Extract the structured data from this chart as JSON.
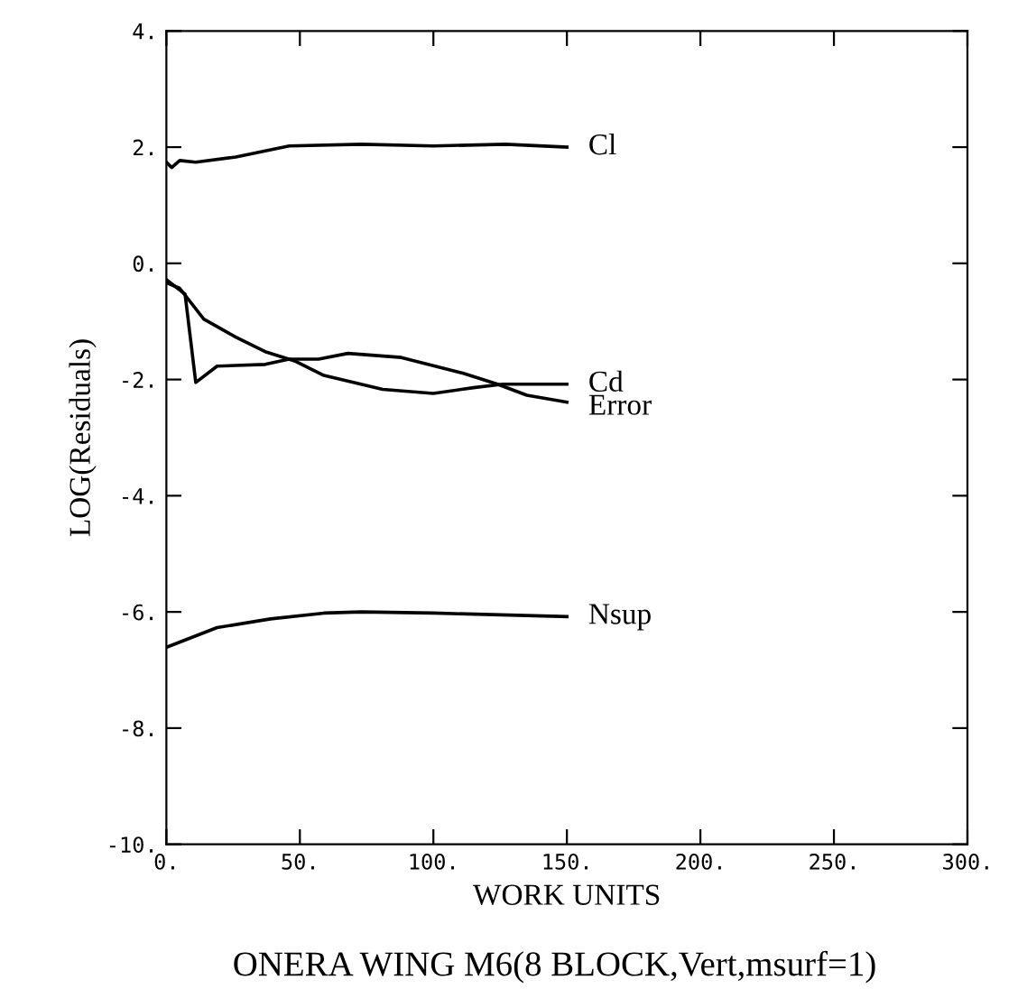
{
  "chart_data": {
    "type": "line",
    "title": "ONERA WING M6(8 BLOCK,Vert,msurf=1)",
    "xlabel": "WORK UNITS",
    "ylabel": "LOG(Residuals)",
    "xlim": [
      0,
      300
    ],
    "ylim": [
      -10,
      4
    ],
    "xticks": [
      {
        "value": 0,
        "label": "0."
      },
      {
        "value": 50,
        "label": "50."
      },
      {
        "value": 100,
        "label": "100."
      },
      {
        "value": 150,
        "label": "150."
      },
      {
        "value": 200,
        "label": "200."
      },
      {
        "value": 250,
        "label": "250."
      },
      {
        "value": 300,
        "label": "300."
      }
    ],
    "yticks": [
      {
        "value": -10,
        "label": "-10."
      },
      {
        "value": -8,
        "label": "-8."
      },
      {
        "value": -6,
        "label": "-6."
      },
      {
        "value": -4,
        "label": "-4."
      },
      {
        "value": -2,
        "label": "-2."
      },
      {
        "value": 0,
        "label": "0."
      },
      {
        "value": 2,
        "label": "2."
      },
      {
        "value": 4,
        "label": "4."
      }
    ],
    "grid": false,
    "legend": false,
    "marker": "none",
    "line_style": "solid",
    "series": [
      {
        "name": "Cl",
        "color": "#000000",
        "x": [
          0,
          2,
          5,
          11,
          26,
          46,
          73,
          100,
          127,
          150
        ],
        "values": [
          1.74,
          1.65,
          1.77,
          1.74,
          1.83,
          2.02,
          2.05,
          2.02,
          2.05,
          2.0
        ]
      },
      {
        "name": "Cd",
        "color": "#000000",
        "x": [
          0,
          5,
          14,
          26,
          37,
          48,
          59,
          81,
          100,
          115,
          126,
          150
        ],
        "values": [
          -0.33,
          -0.43,
          -0.96,
          -1.27,
          -1.52,
          -1.68,
          -1.93,
          -2.17,
          -2.24,
          -2.14,
          -2.08,
          -2.08
        ]
      },
      {
        "name": "Error",
        "color": "#000000",
        "x": [
          0,
          7,
          11,
          19,
          37,
          46,
          57,
          68,
          88,
          111,
          124,
          135,
          150
        ],
        "values": [
          -0.28,
          -0.53,
          -2.05,
          -1.77,
          -1.74,
          -1.65,
          -1.65,
          -1.55,
          -1.62,
          -1.89,
          -2.08,
          -2.27,
          -2.39
        ]
      },
      {
        "name": "Nsup",
        "color": "#000000",
        "x": [
          0,
          19,
          39,
          59,
          73,
          100,
          150
        ],
        "values": [
          -6.61,
          -6.27,
          -6.12,
          -6.02,
          -6.0,
          -6.02,
          -6.08
        ]
      }
    ]
  }
}
